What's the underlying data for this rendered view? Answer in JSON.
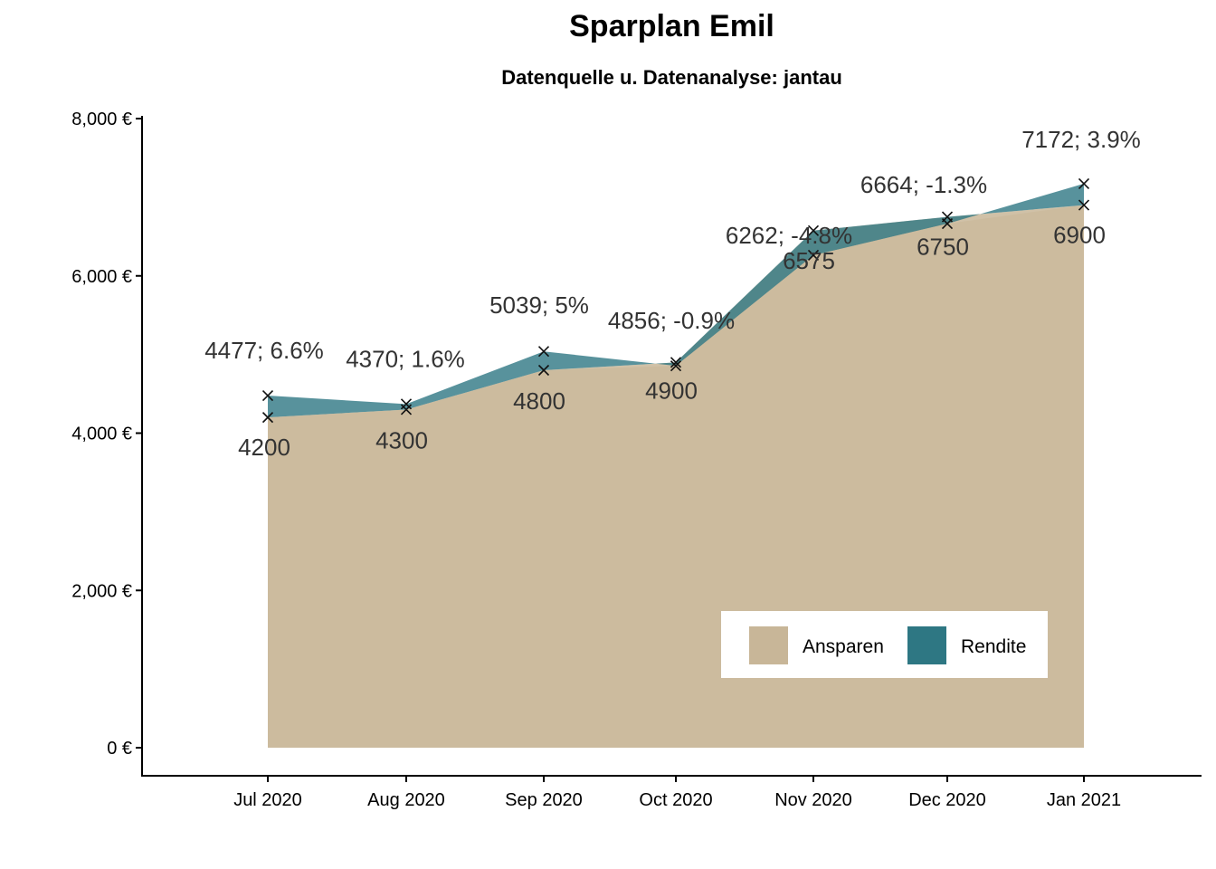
{
  "chart_data": {
    "type": "area",
    "title": "Sparplan Emil",
    "subtitle": "Datenquelle u. Datenanalyse: jantau",
    "xlabel": "",
    "ylabel": "",
    "categories": [
      "Jul 2020",
      "Aug 2020",
      "Sep 2020",
      "Oct 2020",
      "Nov 2020",
      "Dec 2020",
      "Jan 2021"
    ],
    "series": [
      {
        "name": "Ansparen",
        "values": [
          4200,
          4300,
          4800,
          4900,
          6575,
          6750,
          6900
        ],
        "color": "#c8b698"
      },
      {
        "name": "Rendite",
        "values": [
          4477,
          4370,
          5039,
          4856,
          6262,
          6664,
          7172
        ],
        "color": "#2e7783"
      }
    ],
    "point_labels": {
      "ansparen": [
        "4200",
        "4300",
        "4800",
        "4900",
        "6575",
        "6750",
        "6900"
      ],
      "rendite": [
        "4477; 6.6%",
        "4370; 1.6%",
        "5039; 5%",
        "4856; -0.9%",
        "6262; -4.8%",
        "6664; -1.3%",
        "7172; 3.9%"
      ]
    },
    "ylim": [
      0,
      8000
    ],
    "yticks": [
      0,
      2000,
      4000,
      6000,
      8000
    ],
    "ytick_labels": [
      "0 €",
      "2,000 €",
      "4,000 €",
      "6,000 €",
      "8,000 €"
    ],
    "legend": {
      "position": "bottom-right",
      "entries": [
        "Ansparen",
        "Rendite"
      ]
    },
    "grid": false
  }
}
